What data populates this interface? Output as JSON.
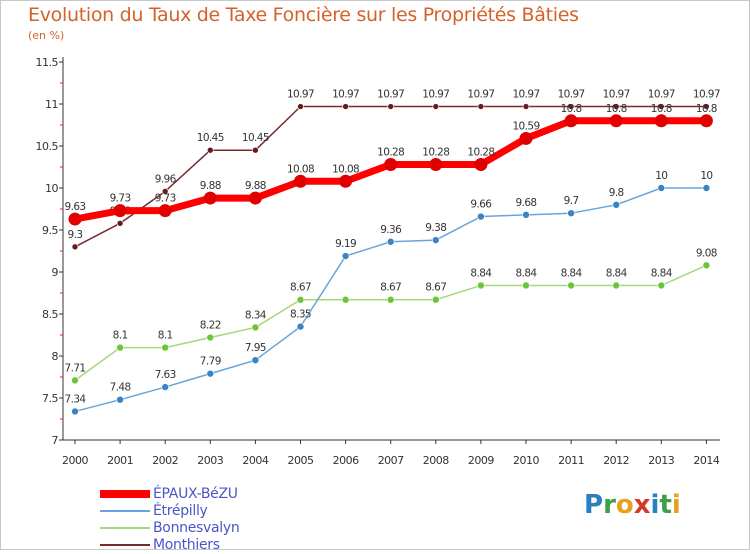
{
  "title": "Evolution du Taux de Taxe Foncière sur les Propriétés Bâties",
  "subtitle": "(en %)",
  "logo": {
    "text": "Proxiti",
    "letters": [
      {
        "ch": "P",
        "color": "#2a7fc4"
      },
      {
        "ch": "r",
        "color": "#3aa04a"
      },
      {
        "ch": "o",
        "color": "#e8a020"
      },
      {
        "ch": "x",
        "color": "#d43a2a"
      },
      {
        "ch": "i",
        "color": "#2a7fc4"
      },
      {
        "ch": "t",
        "color": "#3aa04a"
      },
      {
        "ch": "i",
        "color": "#e8a020"
      }
    ]
  },
  "chart_data": {
    "type": "line",
    "title": "Evolution du Taux de Taxe Foncière sur les Propriétés Bâties",
    "ylabel": "(en %)",
    "x": [
      "2000",
      "2001",
      "2002",
      "2003",
      "2004",
      "2005",
      "2006",
      "2007",
      "2008",
      "2009",
      "2010",
      "2011",
      "2012",
      "2013",
      "2014"
    ],
    "yticks": [
      "7",
      "7.5",
      "8",
      "8.5",
      "9",
      "9.5",
      "10",
      "10.5",
      "11",
      "11.5"
    ],
    "ylim": [
      7,
      11.5
    ],
    "grid": false,
    "legend_position": "bottom-left",
    "series": [
      {
        "name": "Monthiers",
        "color": "#7a2a2a",
        "marker": "#6a1a1a",
        "width": 1.5,
        "dot": 3,
        "values": [
          9.3,
          9.58,
          9.96,
          10.45,
          10.45,
          10.97,
          10.97,
          10.97,
          10.97,
          10.97,
          10.97,
          10.97,
          10.97,
          10.97,
          10.97
        ],
        "labels": [
          "9.3",
          "9.58",
          "9.96",
          "10.45",
          "10.45",
          "10.97",
          "10.97",
          "10.97",
          "10.97",
          "10.97",
          "10.97",
          "10.97",
          "10.97",
          "10.97",
          "10.97"
        ]
      },
      {
        "name": "Bonnesvalyn",
        "color": "#a4d87a",
        "marker": "#6cc43a",
        "width": 1.5,
        "dot": 3.5,
        "values": [
          7.71,
          8.1,
          8.1,
          8.22,
          8.34,
          8.67,
          8.67,
          8.67,
          8.67,
          8.84,
          8.84,
          8.84,
          8.84,
          8.84,
          9.08
        ],
        "labels": [
          "7.71",
          "8.1",
          "8.1",
          "8.22",
          "8.34",
          "8.67",
          "",
          "8.67",
          "8.67",
          "8.84",
          "8.84",
          "8.84",
          "8.84",
          "8.84",
          "9.08"
        ]
      },
      {
        "name": "Étrépilly",
        "color": "#6aa4d8",
        "marker": "#3a84c4",
        "width": 1.5,
        "dot": 3.5,
        "values": [
          7.34,
          7.48,
          7.63,
          7.79,
          7.95,
          8.35,
          9.19,
          9.36,
          9.38,
          9.66,
          9.68,
          9.7,
          9.8,
          10,
          10
        ],
        "labels": [
          "7.34",
          "7.48",
          "7.63",
          "7.79",
          "7.95",
          "8.35",
          "9.19",
          "9.36",
          "9.38",
          "9.66",
          "9.68",
          "9.7",
          "9.8",
          "10",
          "10"
        ]
      },
      {
        "name": "ÉPAUX-BéZU",
        "color": "#ff0000",
        "marker": "#e00000",
        "width": 7,
        "dot": 6.5,
        "values": [
          9.63,
          9.73,
          9.73,
          9.88,
          9.88,
          10.08,
          10.08,
          10.28,
          10.28,
          10.28,
          10.59,
          10.8,
          10.8,
          10.8,
          10.8
        ],
        "labels": [
          "9.63",
          "9.73",
          "9.73",
          "9.88",
          "9.88",
          "10.08",
          "10.08",
          "10.28",
          "10.28",
          "10.28",
          "10.59",
          "10.8",
          "10.8",
          "10.8",
          "10.8"
        ]
      }
    ]
  },
  "legend": [
    {
      "name": "ÉPAUX-BéZU",
      "color": "#ff0000",
      "width": 8
    },
    {
      "name": "Étrépilly",
      "color": "#6aa4d8",
      "width": 2
    },
    {
      "name": "Bonnesvalyn",
      "color": "#a4d87a",
      "width": 2
    },
    {
      "name": "Monthiers",
      "color": "#7a2a2a",
      "width": 2
    }
  ]
}
